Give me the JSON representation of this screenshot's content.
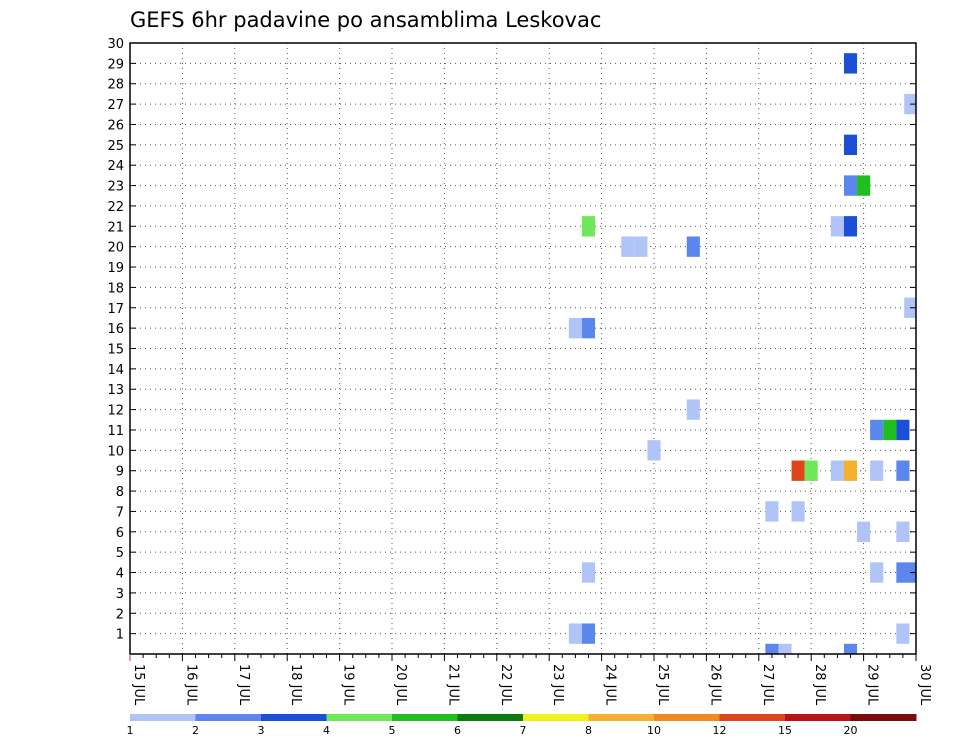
{
  "chart_data": {
    "type": "heatmap",
    "title": "GEFS 6hr padavine po ansamblima Leskovac",
    "xlabel": "",
    "ylabel": "",
    "x_tick_labels": [
      "15 JUL",
      "16 JUL",
      "17 JUL",
      "18 JUL",
      "19 JUL",
      "20 JUL",
      "21 JUL",
      "22 JUL",
      "23 JUL",
      "24 JUL",
      "25 JUL",
      "26 JUL",
      "27 JUL",
      "28 JUL",
      "29 JUL",
      "30 JUL"
    ],
    "y_tick_labels": [
      "1",
      "2",
      "3",
      "4",
      "5",
      "6",
      "7",
      "8",
      "9",
      "10",
      "11",
      "12",
      "13",
      "14",
      "15",
      "16",
      "17",
      "18",
      "19",
      "20",
      "21",
      "22",
      "23",
      "24",
      "25",
      "26",
      "27",
      "28",
      "29",
      "30"
    ],
    "xlim": [
      0,
      60
    ],
    "ylim": [
      0,
      30
    ],
    "grid": true,
    "steps_per_day": 4,
    "colorbar": {
      "labels": [
        "1",
        "2",
        "3",
        "4",
        "5",
        "6",
        "7",
        "8",
        "10",
        "12",
        "15",
        "20"
      ],
      "colors": [
        "#b0c4f8",
        "#5a86ee",
        "#1a4fd6",
        "#6ee85a",
        "#1fbf1f",
        "#0d7a0d",
        "#f2f21a",
        "#f5b02e",
        "#f08a1e",
        "#e0441a",
        "#b81414",
        "#7a0c0c"
      ]
    },
    "cells": [
      {
        "step": 55,
        "member": 29,
        "value": 3
      },
      {
        "step": 59.6,
        "member": 27,
        "value": 1
      },
      {
        "step": 55,
        "member": 25,
        "value": 3
      },
      {
        "step": 55,
        "member": 23,
        "value": 2
      },
      {
        "step": 56,
        "member": 23,
        "value": 5
      },
      {
        "step": 35,
        "member": 21,
        "value": 4
      },
      {
        "step": 54,
        "member": 21,
        "value": 1
      },
      {
        "step": 55,
        "member": 21,
        "value": 3
      },
      {
        "step": 38,
        "member": 20,
        "value": 1
      },
      {
        "step": 39,
        "member": 20,
        "value": 1
      },
      {
        "step": 43,
        "member": 20,
        "value": 2
      },
      {
        "step": 59.6,
        "member": 17,
        "value": 1
      },
      {
        "step": 34,
        "member": 16,
        "value": 1
      },
      {
        "step": 35,
        "member": 16,
        "value": 2
      },
      {
        "step": 43,
        "member": 12,
        "value": 1
      },
      {
        "step": 57,
        "member": 11,
        "value": 2
      },
      {
        "step": 58,
        "member": 11,
        "value": 5
      },
      {
        "step": 59,
        "member": 11,
        "value": 3
      },
      {
        "step": 40,
        "member": 10,
        "value": 1
      },
      {
        "step": 51,
        "member": 9,
        "value": 12
      },
      {
        "step": 52,
        "member": 9,
        "value": 4
      },
      {
        "step": 54,
        "member": 9,
        "value": 1
      },
      {
        "step": 55,
        "member": 9,
        "value": 8
      },
      {
        "step": 57,
        "member": 9,
        "value": 1
      },
      {
        "step": 59,
        "member": 9,
        "value": 2
      },
      {
        "step": 49,
        "member": 7,
        "value": 1
      },
      {
        "step": 51,
        "member": 7,
        "value": 1
      },
      {
        "step": 56,
        "member": 6,
        "value": 1
      },
      {
        "step": 59,
        "member": 6,
        "value": 1
      },
      {
        "step": 35,
        "member": 4,
        "value": 1
      },
      {
        "step": 57,
        "member": 4,
        "value": 1
      },
      {
        "step": 59,
        "member": 4,
        "value": 2
      },
      {
        "step": 60,
        "member": 4,
        "value": 2
      },
      {
        "step": 34,
        "member": 1,
        "value": 1
      },
      {
        "step": 35,
        "member": 1,
        "value": 2
      },
      {
        "step": 59,
        "member": 1,
        "value": 1
      },
      {
        "step": 49,
        "member": 0,
        "value": 2
      },
      {
        "step": 50,
        "member": 0,
        "value": 1
      },
      {
        "step": 55,
        "member": 0,
        "value": 2
      }
    ]
  }
}
